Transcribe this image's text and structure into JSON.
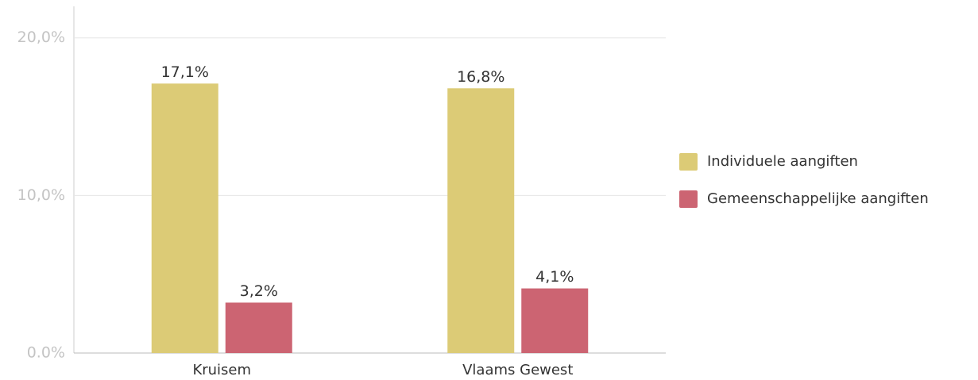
{
  "chart_data": {
    "type": "bar",
    "categories": [
      "Kruisem",
      "Vlaams Gewest"
    ],
    "series": [
      {
        "name": "Individuele aangiften",
        "color": "#dccb76",
        "values": [
          17.1,
          16.8
        ],
        "value_labels": [
          "17,1%",
          "16,8%"
        ]
      },
      {
        "name": "Gemeenschappelijke aangiften",
        "color": "#cc6472",
        "values": [
          3.2,
          4.1
        ],
        "value_labels": [
          "3,2%",
          "4,1%"
        ]
      }
    ],
    "ylim": [
      0,
      22
    ],
    "yticks": [
      {
        "value": 0,
        "label": "0.0%"
      },
      {
        "value": 10,
        "label": "10,0%"
      },
      {
        "value": 20,
        "label": "20,0%"
      }
    ],
    "grid": true,
    "legend": "right"
  }
}
